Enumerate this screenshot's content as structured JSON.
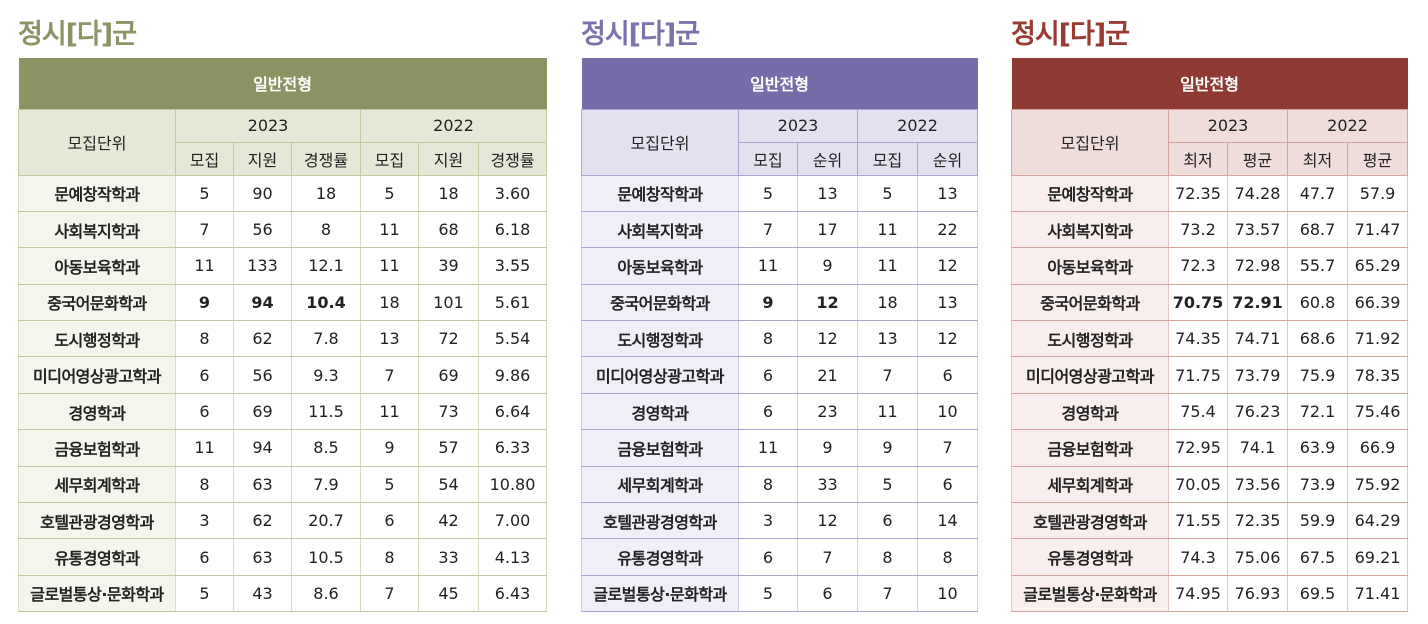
{
  "panels": [
    {
      "title": "정시[다]군",
      "header": "일반전형",
      "unit_label": "모집단위",
      "years": [
        "2023",
        "2022"
      ],
      "cols": [
        "모집",
        "지원",
        "경쟁률",
        "모집",
        "지원",
        "경쟁률"
      ],
      "rows": [
        {
          "name": "문예창작학과",
          "values": [
            "5",
            "90",
            "18",
            "5",
            "18",
            "3.60"
          ]
        },
        {
          "name": "사회복지학과",
          "values": [
            "7",
            "56",
            "8",
            "11",
            "68",
            "6.18"
          ]
        },
        {
          "name": "아동보육학과",
          "values": [
            "11",
            "133",
            "12.1",
            "11",
            "39",
            "3.55"
          ]
        },
        {
          "name": "중국어문화학과",
          "values": [
            "9",
            "94",
            "10.4",
            "18",
            "101",
            "5.61"
          ]
        },
        {
          "name": "도시행정학과",
          "values": [
            "8",
            "62",
            "7.8",
            "13",
            "72",
            "5.54"
          ]
        },
        {
          "name": "미디어영상광고학과",
          "values": [
            "6",
            "56",
            "9.3",
            "7",
            "69",
            "9.86"
          ]
        },
        {
          "name": "경영학과",
          "values": [
            "6",
            "69",
            "11.5",
            "11",
            "73",
            "6.64"
          ]
        },
        {
          "name": "금융보험학과",
          "values": [
            "11",
            "94",
            "8.5",
            "9",
            "57",
            "6.33"
          ]
        },
        {
          "name": "세무회계학과",
          "values": [
            "8",
            "63",
            "7.9",
            "5",
            "54",
            "10.80"
          ]
        },
        {
          "name": "호텔관광경영학과",
          "values": [
            "3",
            "62",
            "20.7",
            "6",
            "42",
            "7.00"
          ]
        },
        {
          "name": "유통경영학과",
          "values": [
            "6",
            "63",
            "10.5",
            "8",
            "33",
            "4.13"
          ]
        },
        {
          "name": "글로벌통상·문화학과",
          "values": [
            "5",
            "43",
            "8.6",
            "7",
            "45",
            "6.43"
          ]
        }
      ]
    },
    {
      "title": "정시[다]군",
      "header": "일반전형",
      "unit_label": "모집단위",
      "years": [
        "2023",
        "2022"
      ],
      "cols": [
        "모집",
        "순위",
        "모집",
        "순위"
      ],
      "rows": [
        {
          "name": "문예창작학과",
          "values": [
            "5",
            "13",
            "5",
            "13"
          ]
        },
        {
          "name": "사회복지학과",
          "values": [
            "7",
            "17",
            "11",
            "22"
          ]
        },
        {
          "name": "아동보육학과",
          "values": [
            "11",
            "9",
            "11",
            "12"
          ]
        },
        {
          "name": "중국어문화학과",
          "values": [
            "9",
            "12",
            "18",
            "13"
          ]
        },
        {
          "name": "도시행정학과",
          "values": [
            "8",
            "12",
            "13",
            "12"
          ]
        },
        {
          "name": "미디어영상광고학과",
          "values": [
            "6",
            "21",
            "7",
            "6"
          ]
        },
        {
          "name": "경영학과",
          "values": [
            "6",
            "23",
            "11",
            "10"
          ]
        },
        {
          "name": "금융보험학과",
          "values": [
            "11",
            "9",
            "9",
            "7"
          ]
        },
        {
          "name": "세무회계학과",
          "values": [
            "8",
            "33",
            "5",
            "6"
          ]
        },
        {
          "name": "호텔관광경영학과",
          "values": [
            "3",
            "12",
            "6",
            "14"
          ]
        },
        {
          "name": "유통경영학과",
          "values": [
            "6",
            "7",
            "8",
            "8"
          ]
        },
        {
          "name": "글로벌통상·문화학과",
          "values": [
            "5",
            "6",
            "7",
            "10"
          ]
        }
      ]
    },
    {
      "title": "정시[다]군",
      "header": "일반전형",
      "unit_label": "모집단위",
      "years": [
        "2023",
        "2022"
      ],
      "cols": [
        "최저",
        "평균",
        "최저",
        "평균"
      ],
      "rows": [
        {
          "name": "문예창작학과",
          "values": [
            "72.35",
            "74.28",
            "47.7",
            "57.9"
          ]
        },
        {
          "name": "사회복지학과",
          "values": [
            "73.2",
            "73.57",
            "68.7",
            "71.47"
          ]
        },
        {
          "name": "아동보육학과",
          "values": [
            "72.3",
            "72.98",
            "55.7",
            "65.29"
          ]
        },
        {
          "name": "중국어문화학과",
          "values": [
            "70.75",
            "72.91",
            "60.8",
            "66.39"
          ]
        },
        {
          "name": "도시행정학과",
          "values": [
            "74.35",
            "74.71",
            "68.6",
            "71.92"
          ]
        },
        {
          "name": "미디어영상광고학과",
          "values": [
            "71.75",
            "73.79",
            "75.9",
            "78.35"
          ]
        },
        {
          "name": "경영학과",
          "values": [
            "75.4",
            "76.23",
            "72.1",
            "75.46"
          ]
        },
        {
          "name": "금융보험학과",
          "values": [
            "72.95",
            "74.1",
            "63.9",
            "66.9"
          ]
        },
        {
          "name": "세무회계학과",
          "values": [
            "70.05",
            "73.56",
            "73.9",
            "75.92"
          ]
        },
        {
          "name": "호텔관광경영학과",
          "values": [
            "71.55",
            "72.35",
            "59.9",
            "64.29"
          ]
        },
        {
          "name": "유통경영학과",
          "values": [
            "74.3",
            "75.06",
            "67.5",
            "69.21"
          ]
        },
        {
          "name": "글로벌통상·문화학과",
          "values": [
            "74.95",
            "76.93",
            "69.5",
            "71.41"
          ]
        }
      ]
    }
  ]
}
